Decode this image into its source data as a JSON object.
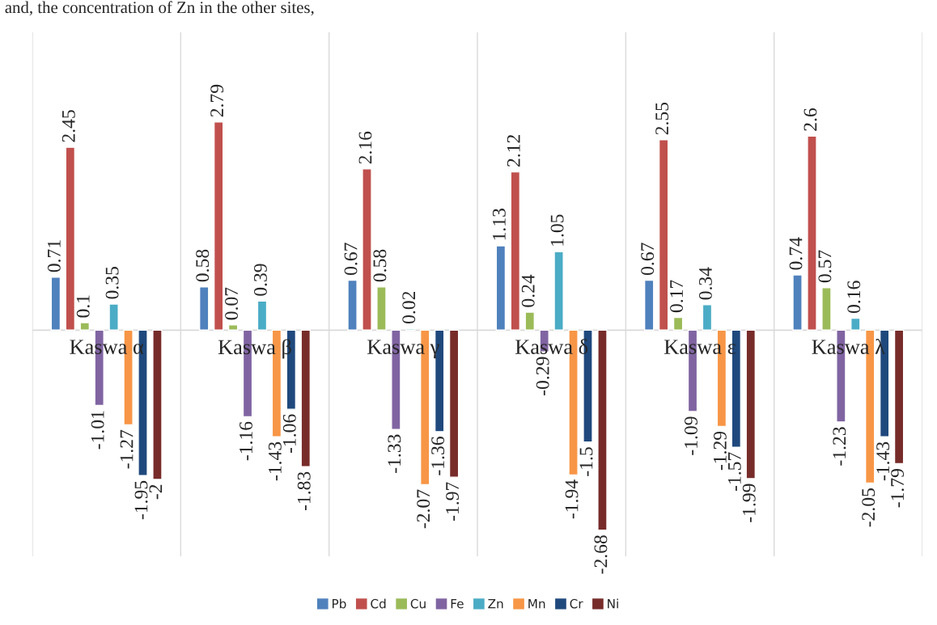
{
  "chart_data": {
    "type": "bar",
    "categories": [
      "Kaswa α",
      "Kaswa β",
      "Kaswa γ",
      "Kaswa δ",
      "Kaswa ε",
      "Kaswa λ"
    ],
    "series": [
      {
        "name": "Pb",
        "color": "#4f81bd",
        "values": [
          0.71,
          0.58,
          0.67,
          1.13,
          0.67,
          0.74
        ]
      },
      {
        "name": "Cd",
        "color": "#c0504d",
        "values": [
          2.45,
          2.79,
          2.16,
          2.12,
          2.55,
          2.6
        ]
      },
      {
        "name": "Cu",
        "color": "#9bbb59",
        "values": [
          0.1,
          0.07,
          0.58,
          0.24,
          0.17,
          0.57
        ]
      },
      {
        "name": "Fe",
        "color": "#8064a2",
        "values": [
          -1.01,
          -1.16,
          -1.33,
          -0.29,
          -1.09,
          -1.23
        ]
      },
      {
        "name": "Zn",
        "color": "#4bacc6",
        "values": [
          0.35,
          0.39,
          0.02,
          1.05,
          0.34,
          0.16
        ]
      },
      {
        "name": "Mn",
        "color": "#f79646",
        "values": [
          -1.27,
          -1.43,
          -2.07,
          -1.94,
          -1.29,
          -2.05
        ]
      },
      {
        "name": "Cr",
        "color": "#1f497d",
        "values": [
          -1.95,
          -1.06,
          -1.36,
          -1.5,
          -1.57,
          -1.43
        ]
      },
      {
        "name": "Ni",
        "color": "#772c2a",
        "values": [
          -2,
          -1.83,
          -1.97,
          -2.68,
          -1.99,
          -1.79
        ]
      }
    ],
    "data_labels": true,
    "grid": "x",
    "legend": "bottom",
    "annotations": [
      "and, the concentration of Zn in the other sites,"
    ]
  }
}
